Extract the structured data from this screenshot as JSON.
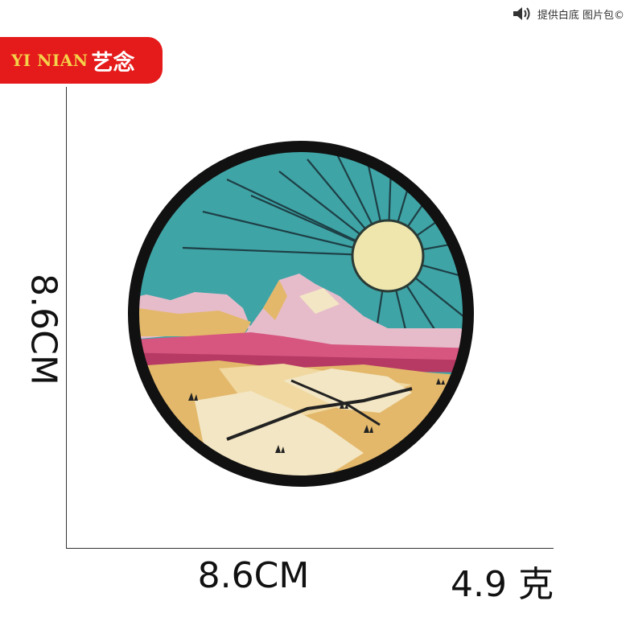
{
  "brand": {
    "latin": "YI NIAN",
    "chinese": "艺念"
  },
  "topbar": {
    "icon": "speaker-icon",
    "text": "提供白底 图片包©"
  },
  "dimensions": {
    "width_label": "8.6CM",
    "height_label": "8.6CM",
    "weight_label": "4.9 克"
  },
  "colors": {
    "brand_red": "#e51a1a",
    "brand_gold": "#f4d24a",
    "sky": "#3fa4a6",
    "sun": "#efe6ae",
    "desert": "#e3b86b",
    "mountain_pink": "#e6bccb",
    "border": "#111111"
  }
}
